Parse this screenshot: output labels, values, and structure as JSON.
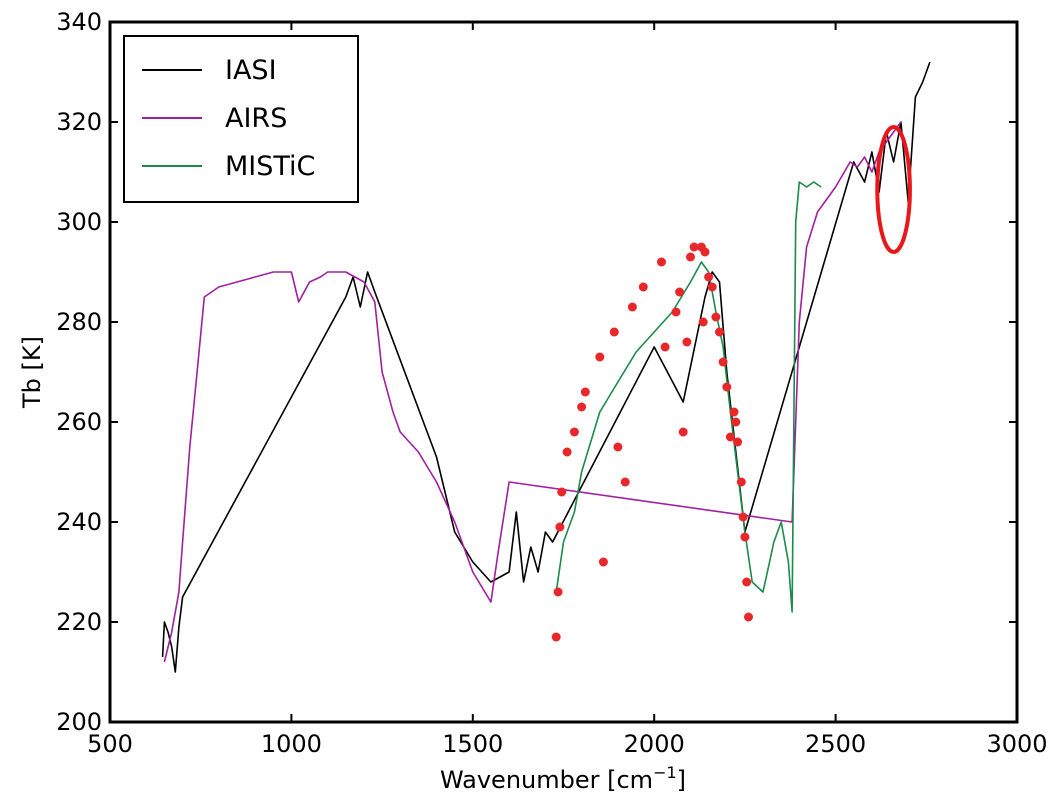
{
  "chart_data": {
    "type": "line",
    "xlabel": "Wavenumber [cm",
    "xlabel_sup": "−1",
    "xlabel_suffix": "]",
    "ylabel": "Tb [K]",
    "xlim": [
      500,
      3000
    ],
    "ylim": [
      200,
      340
    ],
    "xticks": [
      500,
      1000,
      1500,
      2000,
      2500,
      3000
    ],
    "yticks": [
      200,
      220,
      240,
      260,
      280,
      300,
      320,
      340
    ],
    "grid": false,
    "legend_position": "top-left",
    "colors": {
      "IASI": "#000000",
      "AIRS": "#a0209f",
      "MISTiC": "#1b8a4a",
      "points": "#e8272a",
      "highlight": "#e8171a"
    },
    "series": [
      {
        "name": "IASI",
        "color": "#000000",
        "x": [
          645,
          650,
          660,
          670,
          680,
          690,
          700,
          1150,
          1170,
          1190,
          1210,
          1230,
          1400,
          1450,
          1500,
          1550,
          1600,
          1620,
          1640,
          1660,
          1680,
          1700,
          1720,
          2000,
          2080,
          2140,
          2160,
          2180,
          2200,
          2250,
          2550,
          2580,
          2600,
          2620,
          2640,
          2660,
          2680,
          2700,
          2720,
          2740,
          2760
        ],
        "y": [
          213,
          220,
          218,
          215,
          210,
          219,
          225,
          285,
          289,
          283,
          290,
          286,
          253,
          238,
          232,
          228,
          230,
          242,
          228,
          235,
          230,
          238,
          236,
          275,
          264,
          285,
          290,
          288,
          270,
          238,
          312,
          308,
          314,
          306,
          318,
          312,
          320,
          304,
          325,
          328,
          332
        ]
      },
      {
        "name": "AIRS",
        "color": "#a0209f",
        "x": [
          650,
          670,
          690,
          700,
          720,
          740,
          760,
          800,
          850,
          900,
          950,
          1000,
          1020,
          1050,
          1080,
          1100,
          1150,
          1200,
          1230,
          1250,
          1280,
          1300,
          1350,
          1400,
          1450,
          1500,
          1550,
          1570,
          1600,
          2380,
          2400,
          2420,
          2450,
          2500,
          2540,
          2560,
          2580,
          2600,
          2620,
          2640,
          2660,
          2680
        ],
        "y": [
          212,
          218,
          226,
          236,
          255,
          270,
          285,
          287,
          288,
          289,
          290,
          290,
          284,
          288,
          289,
          290,
          290,
          288,
          284,
          270,
          262,
          258,
          254,
          248,
          240,
          230,
          224,
          234,
          248,
          240,
          280,
          295,
          302,
          307,
          312,
          311,
          313,
          310,
          314,
          316,
          318,
          320
        ]
      },
      {
        "name": "MISTiC",
        "color": "#1b8a4a",
        "x": [
          1730,
          1750,
          1780,
          1800,
          1850,
          1900,
          1950,
          2000,
          2050,
          2100,
          2130,
          2150,
          2170,
          2190,
          2210,
          2230,
          2250,
          2270,
          2300,
          2330,
          2350,
          2370,
          2380,
          2390,
          2400,
          2420,
          2440,
          2460
        ],
        "y": [
          226,
          236,
          242,
          250,
          262,
          268,
          274,
          278,
          282,
          288,
          292,
          290,
          282,
          275,
          262,
          250,
          238,
          228,
          226,
          236,
          240,
          232,
          222,
          300,
          308,
          307,
          308,
          307
        ]
      }
    ],
    "points": {
      "name": "",
      "color": "#e8272a",
      "x": [
        1730,
        1735,
        1740,
        1745,
        1760,
        1780,
        1800,
        1810,
        1850,
        1860,
        1890,
        1900,
        1920,
        1940,
        1970,
        2020,
        2030,
        2060,
        2070,
        2080,
        2090,
        2100,
        2110,
        2130,
        2135,
        2140,
        2150,
        2160,
        2170,
        2180,
        2190,
        2200,
        2210,
        2220,
        2225,
        2230,
        2240,
        2245,
        2250,
        2255,
        2260
      ],
      "y": [
        217,
        226,
        239,
        246,
        254,
        258,
        263,
        266,
        273,
        232,
        278,
        255,
        248,
        283,
        287,
        292,
        275,
        282,
        286,
        258,
        276,
        293,
        295,
        295,
        280,
        294,
        289,
        287,
        281,
        278,
        272,
        267,
        257,
        262,
        260,
        256,
        248,
        241,
        237,
        228,
        221
      ]
    },
    "annotation": {
      "type": "ellipse",
      "cx": 2660,
      "cy": 306.5,
      "rx": 45,
      "ry": 12.5
    }
  }
}
